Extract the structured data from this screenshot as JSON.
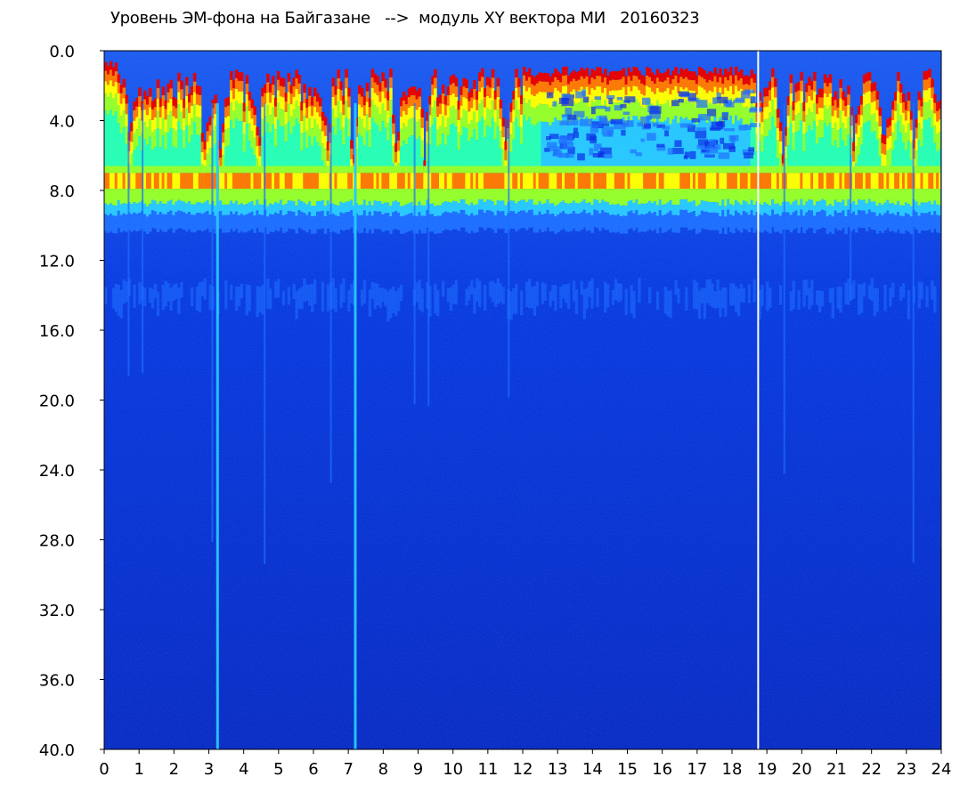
{
  "chart_data": {
    "type": "heatmap",
    "title": "Уровень ЭМ-фона на Байгазане   -->  модуль XY вектора МИ   20160323",
    "xlabel": "",
    "ylabel": "",
    "x_range": [
      0,
      24
    ],
    "y_range": [
      0.0,
      40.0
    ],
    "y_inverted": true,
    "x_ticks": [
      "0",
      "1",
      "2",
      "3",
      "4",
      "5",
      "6",
      "7",
      "8",
      "9",
      "10",
      "11",
      "12",
      "13",
      "14",
      "15",
      "16",
      "17",
      "18",
      "19",
      "20",
      "21",
      "22",
      "23",
      "24"
    ],
    "y_ticks": [
      "0.0",
      "4.0",
      "8.0",
      "12.0",
      "16.0",
      "20.0",
      "24.0",
      "28.0",
      "32.0",
      "36.0",
      "40.0"
    ],
    "colormap": [
      "#0000b4",
      "#0a28e6",
      "#1e6eff",
      "#28c8ff",
      "#28ffb4",
      "#96ff28",
      "#ffff00",
      "#ff7800",
      "#e60000"
    ],
    "background_color": "#0a2fd0",
    "grid": false,
    "legend": "none",
    "features": {
      "active_band_upper_y": [
        1.0,
        3.0
      ],
      "strong_band_y": [
        7.0,
        8.5
      ],
      "secondary_band_y": [
        13.0,
        15.0
      ],
      "vertical_streaks_x": [
        0.7,
        1.1,
        3.1,
        3.25,
        4.6,
        6.5,
        7.2,
        8.9,
        9.3,
        11.6,
        19.5,
        21.4,
        23.2,
        24.0
      ],
      "data_gap_x": 18.75
    }
  }
}
